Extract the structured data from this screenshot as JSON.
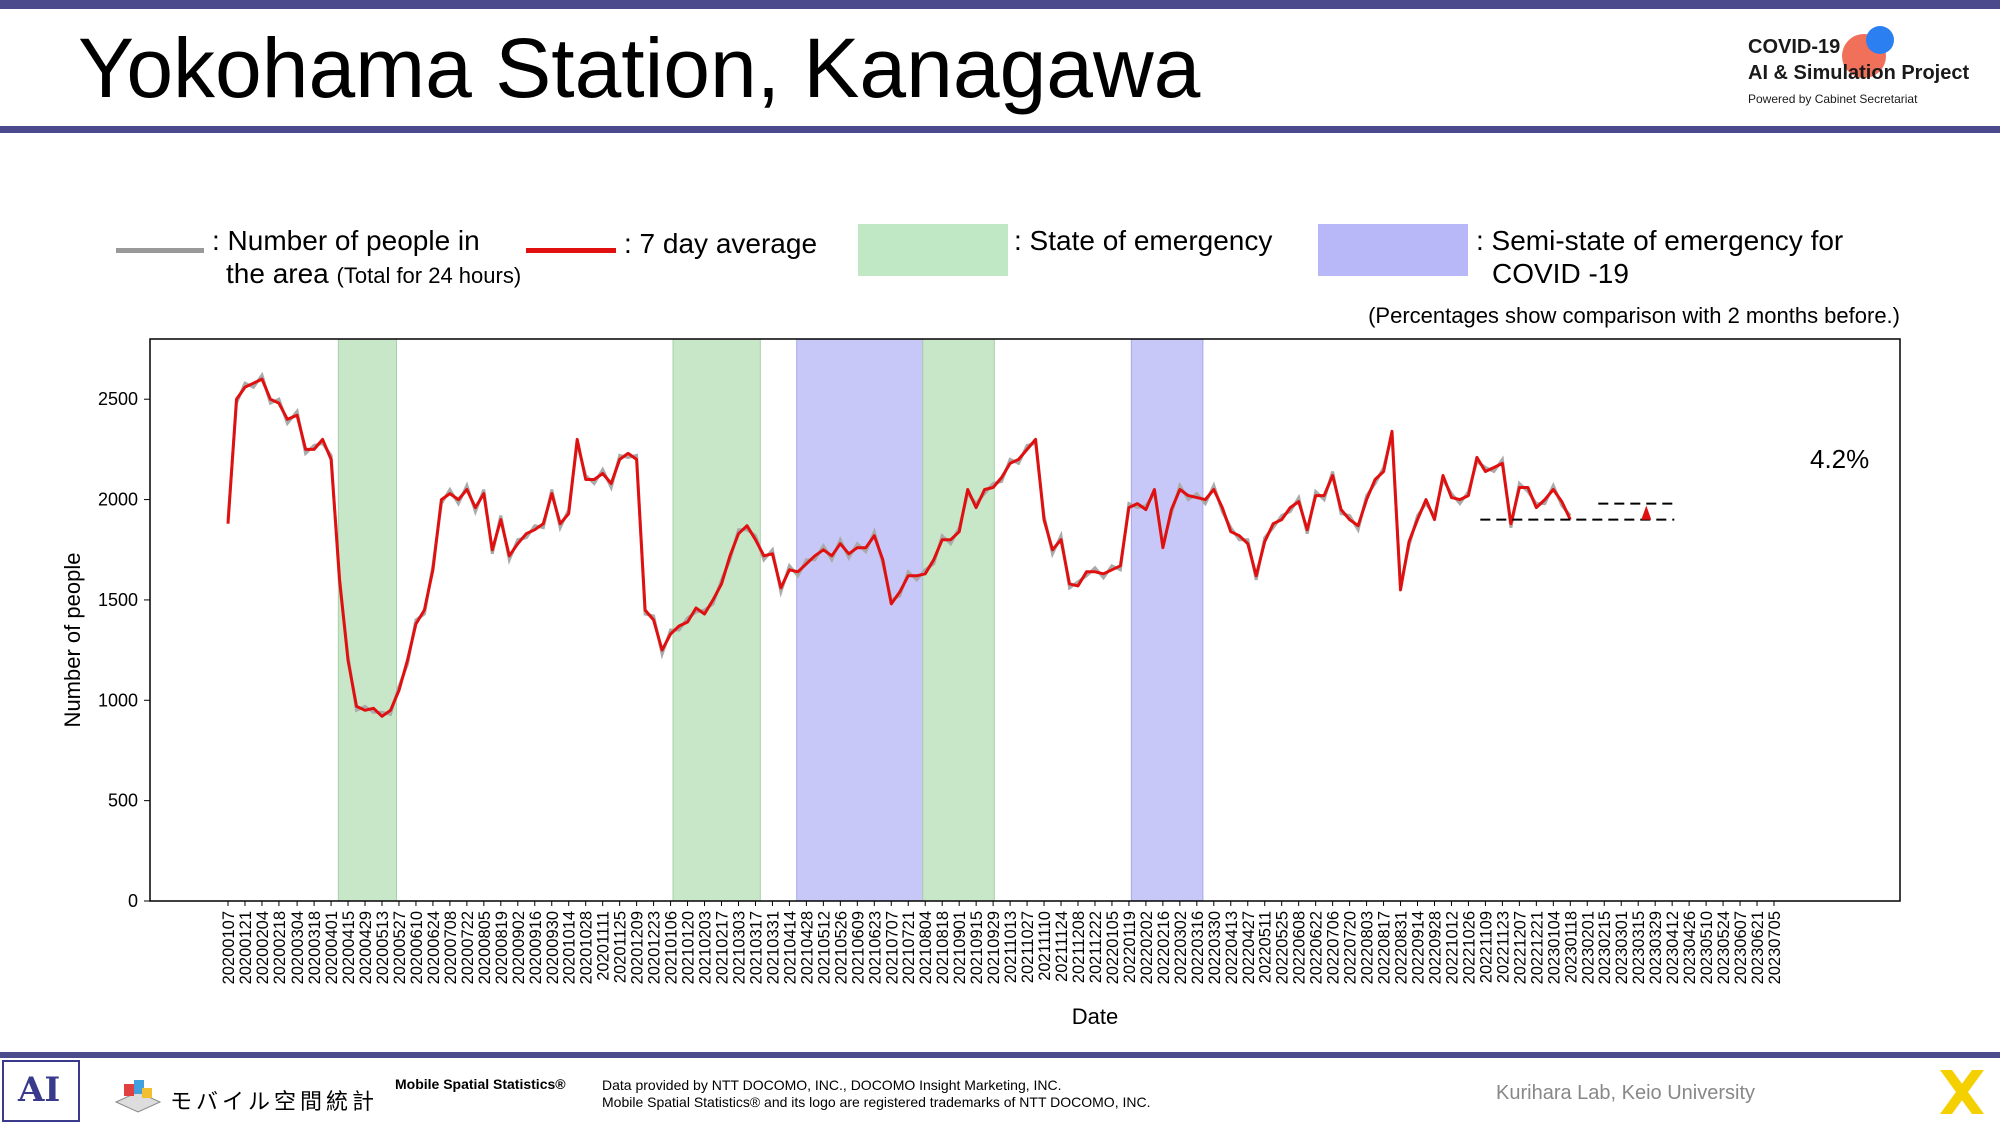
{
  "title": "Yokohama Station, Kanagawa",
  "logo": {
    "line1": "COVID-19",
    "line2": "AI & Simulation Project",
    "line3": "Powered by Cabinet Secretariat"
  },
  "legend": {
    "people_label": ": Number of people in",
    "people_label2": "the area",
    "people_label_small": "(Total for 24 hours)",
    "avg_label": ": 7 day average",
    "emergency_label": ": State of emergency",
    "semi_label": ": Semi-state of emergency for",
    "semi_label2": "COVID -19"
  },
  "note": "(Percentages show comparison with 2 months before.)",
  "chart_data": {
    "type": "line",
    "xlabel": "Date",
    "ylabel": "Number of people",
    "ylim": [
      0,
      2800
    ],
    "yticks": [
      0,
      500,
      1000,
      1500,
      2000,
      2500
    ],
    "x_tick_labels": [
      "20200107",
      "20200121",
      "20200204",
      "20200218",
      "20200304",
      "20200318",
      "20200401",
      "20200415",
      "20200429",
      "20200513",
      "20200527",
      "20200610",
      "20200624",
      "20200708",
      "20200722",
      "20200805",
      "20200819",
      "20200902",
      "20200916",
      "20200930",
      "20201014",
      "20201028",
      "20201111",
      "20201125",
      "20201209",
      "20201223",
      "20210106",
      "20210120",
      "20210203",
      "20210217",
      "20210303",
      "20210317",
      "20210331",
      "20210414",
      "20210428",
      "20210512",
      "20210526",
      "20210609",
      "20210623",
      "20210707",
      "20210721",
      "20210804",
      "20210818",
      "20210901",
      "20210915",
      "20210929",
      "20211013",
      "20211027",
      "20211110",
      "20211124",
      "20211208",
      "20211222",
      "20220105",
      "20220119",
      "20220202",
      "20220216",
      "20220302",
      "20220316",
      "20220330",
      "20220413",
      "20220427",
      "20220511",
      "20220525",
      "20220608",
      "20220622",
      "20220706",
      "20220720",
      "20220803",
      "20220817",
      "20220831",
      "20220914",
      "20220928",
      "20221012",
      "20221026",
      "20221109",
      "20221123",
      "20221207",
      "20221221",
      "20230104",
      "20230118",
      "20230201",
      "20230215",
      "20230301",
      "20230315",
      "20230329",
      "20230412",
      "20230426",
      "20230510",
      "20230524",
      "20230607",
      "20230621",
      "20230705"
    ],
    "series": [
      {
        "name": "7 day average",
        "color": "#e01010",
        "points": [
          [
            "20200107",
            1880
          ],
          [
            "20200114",
            2500
          ],
          [
            "20200121",
            2560
          ],
          [
            "20200128",
            2580
          ],
          [
            "20200204",
            2600
          ],
          [
            "20200211",
            2500
          ],
          [
            "20200218",
            2480
          ],
          [
            "20200225",
            2400
          ],
          [
            "20200304",
            2420
          ],
          [
            "20200311",
            2250
          ],
          [
            "20200318",
            2250
          ],
          [
            "20200325",
            2300
          ],
          [
            "20200401",
            2200
          ],
          [
            "20200408",
            1600
          ],
          [
            "20200415",
            1200
          ],
          [
            "20200422",
            970
          ],
          [
            "20200429",
            950
          ],
          [
            "20200506",
            960
          ],
          [
            "20200513",
            920
          ],
          [
            "20200520",
            950
          ],
          [
            "20200527",
            1050
          ],
          [
            "20200603",
            1200
          ],
          [
            "20200610",
            1380
          ],
          [
            "20200617",
            1450
          ],
          [
            "20200624",
            1650
          ],
          [
            "20200701",
            2000
          ],
          [
            "20200708",
            2030
          ],
          [
            "20200715",
            2000
          ],
          [
            "20200722",
            2050
          ],
          [
            "20200729",
            1960
          ],
          [
            "20200805",
            2030
          ],
          [
            "20200812",
            1750
          ],
          [
            "20200819",
            1900
          ],
          [
            "20200826",
            1720
          ],
          [
            "20200902",
            1780
          ],
          [
            "20200909",
            1830
          ],
          [
            "20200916",
            1850
          ],
          [
            "20200923",
            1880
          ],
          [
            "20200930",
            2030
          ],
          [
            "20201007",
            1880
          ],
          [
            "20201014",
            1930
          ],
          [
            "20201021",
            2300
          ],
          [
            "20201028",
            2100
          ],
          [
            "20201104",
            2100
          ],
          [
            "20201111",
            2130
          ],
          [
            "20201118",
            2080
          ],
          [
            "20201125",
            2200
          ],
          [
            "20201202",
            2230
          ],
          [
            "20201209",
            2200
          ],
          [
            "20201216",
            1450
          ],
          [
            "20201223",
            1400
          ],
          [
            "20201230",
            1250
          ],
          [
            "20210106",
            1330
          ],
          [
            "20210113",
            1370
          ],
          [
            "20210120",
            1390
          ],
          [
            "20210127",
            1460
          ],
          [
            "20210203",
            1430
          ],
          [
            "20210210",
            1500
          ],
          [
            "20210217",
            1580
          ],
          [
            "20210224",
            1720
          ],
          [
            "20210303",
            1830
          ],
          [
            "20210310",
            1870
          ],
          [
            "20210317",
            1800
          ],
          [
            "20210324",
            1720
          ],
          [
            "20210331",
            1730
          ],
          [
            "20210407",
            1560
          ],
          [
            "20210414",
            1650
          ],
          [
            "20210421",
            1640
          ],
          [
            "20210428",
            1680
          ],
          [
            "20210505",
            1720
          ],
          [
            "20210512",
            1750
          ],
          [
            "20210519",
            1720
          ],
          [
            "20210526",
            1780
          ],
          [
            "20210602",
            1730
          ],
          [
            "20210609",
            1760
          ],
          [
            "20210616",
            1760
          ],
          [
            "20210623",
            1820
          ],
          [
            "20210630",
            1700
          ],
          [
            "20210707",
            1480
          ],
          [
            "20210714",
            1540
          ],
          [
            "20210721",
            1620
          ],
          [
            "20210728",
            1620
          ],
          [
            "20210804",
            1630
          ],
          [
            "20210811",
            1700
          ],
          [
            "20210818",
            1800
          ],
          [
            "20210825",
            1800
          ],
          [
            "20210901",
            1840
          ],
          [
            "20210908",
            2050
          ],
          [
            "20210915",
            1960
          ],
          [
            "20210922",
            2050
          ],
          [
            "20210929",
            2060
          ],
          [
            "20211006",
            2110
          ],
          [
            "20211013",
            2180
          ],
          [
            "20211020",
            2200
          ],
          [
            "20211027",
            2250
          ],
          [
            "20211103",
            2300
          ],
          [
            "20211110",
            1900
          ],
          [
            "20211117",
            1750
          ],
          [
            "20211124",
            1800
          ],
          [
            "20211201",
            1580
          ],
          [
            "20211208",
            1570
          ],
          [
            "20211215",
            1640
          ],
          [
            "20211222",
            1640
          ],
          [
            "20211229",
            1630
          ],
          [
            "20220105",
            1650
          ],
          [
            "20220112",
            1670
          ],
          [
            "20220119",
            1960
          ],
          [
            "20220126",
            1980
          ],
          [
            "20220202",
            1950
          ],
          [
            "20220209",
            2050
          ],
          [
            "20220216",
            1760
          ],
          [
            "20220223",
            1950
          ],
          [
            "20220302",
            2050
          ],
          [
            "20220309",
            2020
          ],
          [
            "20220316",
            2010
          ],
          [
            "20220323",
            2000
          ],
          [
            "20220330",
            2050
          ],
          [
            "20220406",
            1960
          ],
          [
            "20220413",
            1840
          ],
          [
            "20220420",
            1820
          ],
          [
            "20220427",
            1780
          ],
          [
            "20220504",
            1620
          ],
          [
            "20220511",
            1790
          ],
          [
            "20220518",
            1880
          ],
          [
            "20220525",
            1900
          ],
          [
            "20220601",
            1960
          ],
          [
            "20220608",
            1990
          ],
          [
            "20220615",
            1850
          ],
          [
            "20220622",
            2020
          ],
          [
            "20220629",
            2020
          ],
          [
            "20220706",
            2120
          ],
          [
            "20220713",
            1950
          ],
          [
            "20220720",
            1900
          ],
          [
            "20220727",
            1870
          ],
          [
            "20220803",
            2000
          ],
          [
            "20220810",
            2100
          ],
          [
            "20220817",
            2140
          ],
          [
            "20220824",
            2340
          ],
          [
            "20220831",
            1550
          ],
          [
            "20220907",
            1790
          ],
          [
            "20220914",
            1900
          ],
          [
            "20220921",
            2000
          ],
          [
            "20220928",
            1900
          ],
          [
            "20221005",
            2120
          ],
          [
            "20221012",
            2010
          ],
          [
            "20221019",
            2000
          ],
          [
            "20221026",
            2020
          ],
          [
            "20221102",
            2210
          ],
          [
            "20221109",
            2140
          ],
          [
            "20221116",
            2160
          ],
          [
            "20221123",
            2180
          ],
          [
            "20221130",
            1880
          ],
          [
            "20221207",
            2060
          ],
          [
            "20221214",
            2060
          ],
          [
            "20221221",
            1960
          ],
          [
            "20221228",
            2000
          ],
          [
            "20230104",
            2050
          ],
          [
            "20230111",
            1990
          ],
          [
            "20230118",
            1900
          ]
        ]
      }
    ],
    "shaded_regions": [
      {
        "type": "State of emergency",
        "start": "20200407",
        "end": "20200525"
      },
      {
        "type": "State of emergency",
        "start": "20210108",
        "end": "20210321"
      },
      {
        "type": "Semi-state of emergency for COVID -19",
        "start": "20210420",
        "end": "20210802"
      },
      {
        "type": "State of emergency",
        "start": "20210802",
        "end": "20210930"
      },
      {
        "type": "Semi-state of emergency for COVID -19",
        "start": "20220121",
        "end": "20220321"
      }
    ],
    "annotation": {
      "text": "4.2%",
      "direction": "up",
      "baseline": 1900,
      "current": 1980
    },
    "colors": {
      "emergency": "#c8e6c8",
      "semi": "#c8c8f8",
      "raw": "#aaaaaa",
      "avg": "#e01010"
    }
  },
  "footer": {
    "ai_logo": "AI",
    "mobile_logo_text": "モバイル空間統計",
    "mss": "Mobile Spatial Statistics®",
    "data_line1": "Data provided by NTT DOCOMO, INC., DOCOMO Insight Marketing, INC.",
    "data_line2": "Mobile Spatial Statistics® and its logo are registered trademarks of NTT DOCOMO, INC.",
    "kurihara": "Kurihara Lab, Keio University"
  }
}
